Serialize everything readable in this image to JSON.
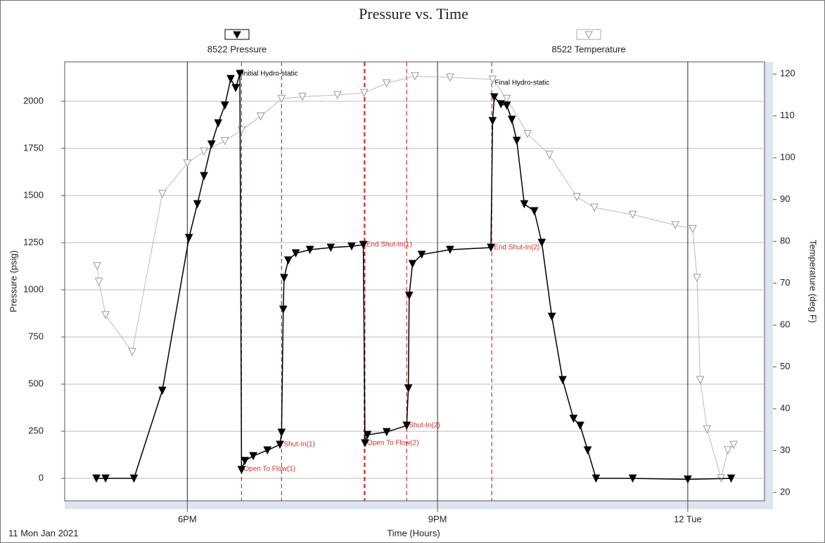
{
  "chart_data": {
    "type": "line",
    "title": "Pressure vs. Time",
    "x_label": "Time (Hours)",
    "x_date_label": "11 Mon Jan 2021",
    "y_label": "Pressure (psig)",
    "y2_label": "Temperature (deg F)",
    "xlim": [
      16.53,
      24.92
    ],
    "xticks": [
      {
        "value": 18,
        "label": "6PM"
      },
      {
        "value": 21,
        "label": "9PM"
      },
      {
        "value": 24,
        "label": "12 Tue"
      }
    ],
    "ylim": [
      -119,
      2209
    ],
    "yticks": [
      0,
      250,
      500,
      750,
      1000,
      1250,
      1500,
      1750,
      2000
    ],
    "y2lim": [
      18,
      122.9
    ],
    "y2ticks": [
      20,
      30,
      40,
      50,
      60,
      70,
      80,
      90,
      100,
      110,
      120
    ],
    "grid": true,
    "legend": "top",
    "series": [
      {
        "name": "8522 Pressure",
        "color": "#000000",
        "axis": "y",
        "x": [
          16.91,
          17.02,
          17.36,
          17.7,
          18.02,
          18.12,
          18.2,
          18.29,
          18.37,
          18.45,
          18.52,
          18.58,
          18.63,
          18.65,
          18.69,
          18.79,
          18.96,
          19.11,
          19.13,
          19.15,
          19.16,
          19.21,
          19.3,
          19.47,
          19.72,
          19.97,
          20.11,
          20.13,
          20.16,
          20.39,
          20.63,
          20.65,
          20.66,
          20.7,
          20.81,
          21.15,
          21.64,
          21.66,
          21.68,
          21.76,
          21.83,
          21.89,
          21.95,
          22.04,
          22.16,
          22.25,
          22.37,
          22.5,
          22.63,
          22.71,
          22.8,
          22.9,
          23.34,
          24.0,
          24.52
        ],
        "values": [
          0,
          0,
          0,
          466,
          1276,
          1455,
          1604,
          1772,
          1884,
          1978,
          2119,
          2071,
          2146,
          45,
          93,
          119,
          149,
          179,
          243,
          896,
          1063,
          1157,
          1194,
          1213,
          1224,
          1231,
          1239,
          187,
          231,
          246,
          280,
          478,
          970,
          1138,
          1187,
          1213,
          1224,
          1896,
          2022,
          1985,
          1978,
          1903,
          1791,
          1455,
          1418,
          1250,
          858,
          522,
          317,
          280,
          149,
          0,
          0,
          -5,
          0
        ]
      },
      {
        "name": "8522 Temperature",
        "color": "#999999",
        "axis": "y2",
        "x": [
          16.92,
          16.94,
          17.02,
          17.34,
          17.7,
          18.0,
          18.2,
          18.45,
          18.65,
          18.88,
          19.13,
          19.38,
          19.8,
          20.12,
          20.39,
          20.73,
          21.15,
          21.66,
          21.83,
          22.08,
          22.34,
          22.67,
          22.88,
          23.34,
          23.85,
          24.06,
          24.11,
          24.15,
          24.23,
          24.4,
          24.48,
          24.55
        ],
        "values": [
          74.1,
          70.4,
          62.4,
          53.6,
          91.4,
          98.7,
          101.5,
          104.0,
          106.6,
          109.9,
          114.1,
          114.6,
          115.0,
          115.5,
          117.8,
          119.5,
          119.2,
          118.7,
          114.1,
          105.7,
          100.7,
          90.6,
          88.1,
          86.4,
          83.9,
          83.0,
          71.3,
          46.9,
          35.1,
          23.4,
          30.1,
          31.4
        ]
      }
    ],
    "annotations": [
      {
        "text": "Initial Hydro-static",
        "x": 18.63,
        "y": 2146,
        "color": "#000000"
      },
      {
        "text": "Final Hydro-static",
        "x": 21.66,
        "y": 2097,
        "color": "#000000"
      },
      {
        "text": "Open To Flow(1)",
        "x": 18.65,
        "y": 50,
        "color": "#d03030"
      },
      {
        "text": "Shut-In(1)",
        "x": 19.13,
        "y": 180,
        "color": "#d03030"
      },
      {
        "text": "End Shut-In(1)",
        "x": 20.12,
        "y": 1239,
        "color": "#d03030"
      },
      {
        "text": "Open To Flow(2)",
        "x": 20.13,
        "y": 187,
        "color": "#d03030"
      },
      {
        "text": "Shut-In(2)",
        "x": 20.63,
        "y": 280,
        "color": "#d03030"
      },
      {
        "text": "End Shut-In(2)",
        "x": 21.65,
        "y": 1224,
        "color": "#d03030"
      }
    ]
  }
}
